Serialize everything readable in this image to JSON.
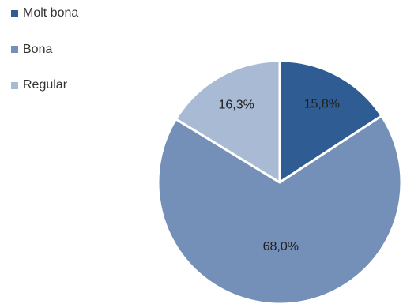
{
  "chart_data": {
    "type": "pie",
    "title": "",
    "categories": [
      "Molt bona",
      "Bona",
      "Regular"
    ],
    "values": [
      15.8,
      68.0,
      16.3
    ],
    "labels": [
      "15,8%",
      "68,0%",
      "16,3%"
    ],
    "colors": [
      "#2f5d93",
      "#7490b8",
      "#a9bbd4"
    ],
    "start_angle_deg": 0,
    "direction": "clockwise",
    "legend_position": "top-left",
    "slice_border_color": "#ffffff"
  }
}
